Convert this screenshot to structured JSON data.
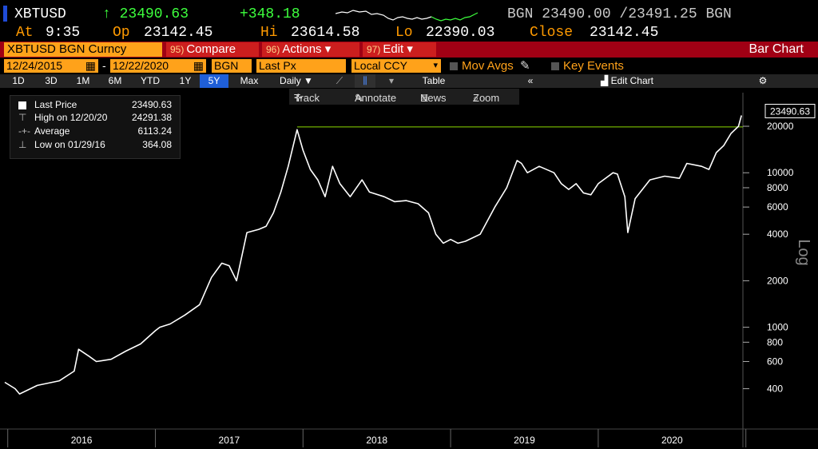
{
  "quote": {
    "symbol": "XBTUSD",
    "last": "↑ 23490.63",
    "change": "+348.18",
    "source_quote": "BGN 23490.00 /23491.25 BGN",
    "at_label": "At",
    "at_value": "9:35",
    "op_label": "Op",
    "op_value": "23142.45",
    "hi_label": "Hi",
    "hi_value": "23614.58",
    "lo_label": "Lo",
    "lo_value": "22390.03",
    "close_label": "Close",
    "close_value": "23142.45"
  },
  "toolbar": {
    "security": "XBTUSD BGN Curncy",
    "compare_num": "95)",
    "compare": "Compare",
    "actions_num": "96)",
    "actions": "Actions ▾",
    "edit_num": "97)",
    "edit": "Edit ▾",
    "title": "Bar Chart"
  },
  "options": {
    "start_date": "12/24/2015",
    "end_date": "12/22/2020",
    "source": "BGN",
    "field": "Last Px",
    "currency": "Local CCY",
    "mov_avgs": "Mov Avgs",
    "key_events": "Key Events"
  },
  "ranges": [
    "1D",
    "3D",
    "1M",
    "6M",
    "YTD",
    "1Y",
    "5Y",
    "Max",
    "Daily ▼",
    "Table",
    "Edit Chart"
  ],
  "selected_range": "5Y",
  "chart_tools": {
    "track": "Track",
    "annotate": "Annotate",
    "news": "News",
    "zoom": "Zoom"
  },
  "legend": {
    "last_label": "Last Price",
    "last_value": "23490.63",
    "high_label": "High on 12/20/20",
    "high_value": "24291.38",
    "avg_label": "Average",
    "avg_value": "6113.24",
    "low_label": "Low on 01/29/16",
    "low_value": "364.08"
  },
  "colors": {
    "line": "#ffffff",
    "high_line": "#8bd800",
    "accent_orange": "#ffa21a",
    "toolbar_red": "#a00014",
    "up_green": "#3dff3d"
  },
  "chart_data": {
    "type": "line",
    "scale": "log",
    "ylabel": "Log",
    "ylim": [
      250,
      26000
    ],
    "y_ticks": [
      400,
      600,
      800,
      1000,
      2000,
      4000,
      6000,
      8000,
      10000,
      20000
    ],
    "y_tick_labels": [
      "400",
      "600",
      "800",
      "1000",
      "2000",
      "4000",
      "6000",
      "8000",
      "10000",
      "20000"
    ],
    "x_labels": [
      "2016",
      "2017",
      "2018",
      "2019",
      "2020"
    ],
    "last_price_label": "23490.63",
    "high_line_value": 19800,
    "series": [
      {
        "x": [
          2015.98,
          2016.05,
          2016.08,
          2016.2,
          2016.35,
          2016.45,
          2016.48,
          2016.55,
          2016.6,
          2016.7,
          2016.8,
          2016.9,
          2017.0,
          2017.03,
          2017.1,
          2017.2,
          2017.3,
          2017.38,
          2017.45,
          2017.5,
          2017.55,
          2017.62,
          2017.7,
          2017.75,
          2017.8,
          2017.85,
          2017.9,
          2017.96,
          2018.0,
          2018.05,
          2018.1,
          2018.15,
          2018.2,
          2018.25,
          2018.32,
          2018.4,
          2018.45,
          2018.55,
          2018.62,
          2018.7,
          2018.78,
          2018.85,
          2018.9,
          2018.95,
          2019.0,
          2019.05,
          2019.1,
          2019.2,
          2019.3,
          2019.38,
          2019.45,
          2019.48,
          2019.52,
          2019.6,
          2019.7,
          2019.75,
          2019.8,
          2019.85,
          2019.9,
          2019.95,
          2020.0,
          2020.1,
          2020.13,
          2020.18,
          2020.2,
          2020.25,
          2020.35,
          2020.45,
          2020.55,
          2020.6,
          2020.7,
          2020.75,
          2020.8,
          2020.85,
          2020.9,
          2020.95,
          2020.97
        ],
        "y": [
          440,
          400,
          370,
          420,
          450,
          520,
          720,
          650,
          600,
          620,
          700,
          780,
          950,
          1000,
          1050,
          1200,
          1400,
          2100,
          2600,
          2500,
          2000,
          4100,
          4300,
          4500,
          5500,
          7500,
          11000,
          19000,
          14000,
          10500,
          9000,
          7000,
          11000,
          8500,
          7000,
          9000,
          7500,
          7000,
          6500,
          6600,
          6300,
          5500,
          4000,
          3500,
          3700,
          3500,
          3600,
          4000,
          6000,
          8000,
          12000,
          11500,
          10000,
          11000,
          10000,
          8500,
          7800,
          8500,
          7400,
          7200,
          8500,
          10000,
          9800,
          7000,
          4100,
          6800,
          9000,
          9500,
          9200,
          11500,
          11000,
          10500,
          13500,
          15000,
          18000,
          20000,
          23500
        ]
      }
    ]
  }
}
